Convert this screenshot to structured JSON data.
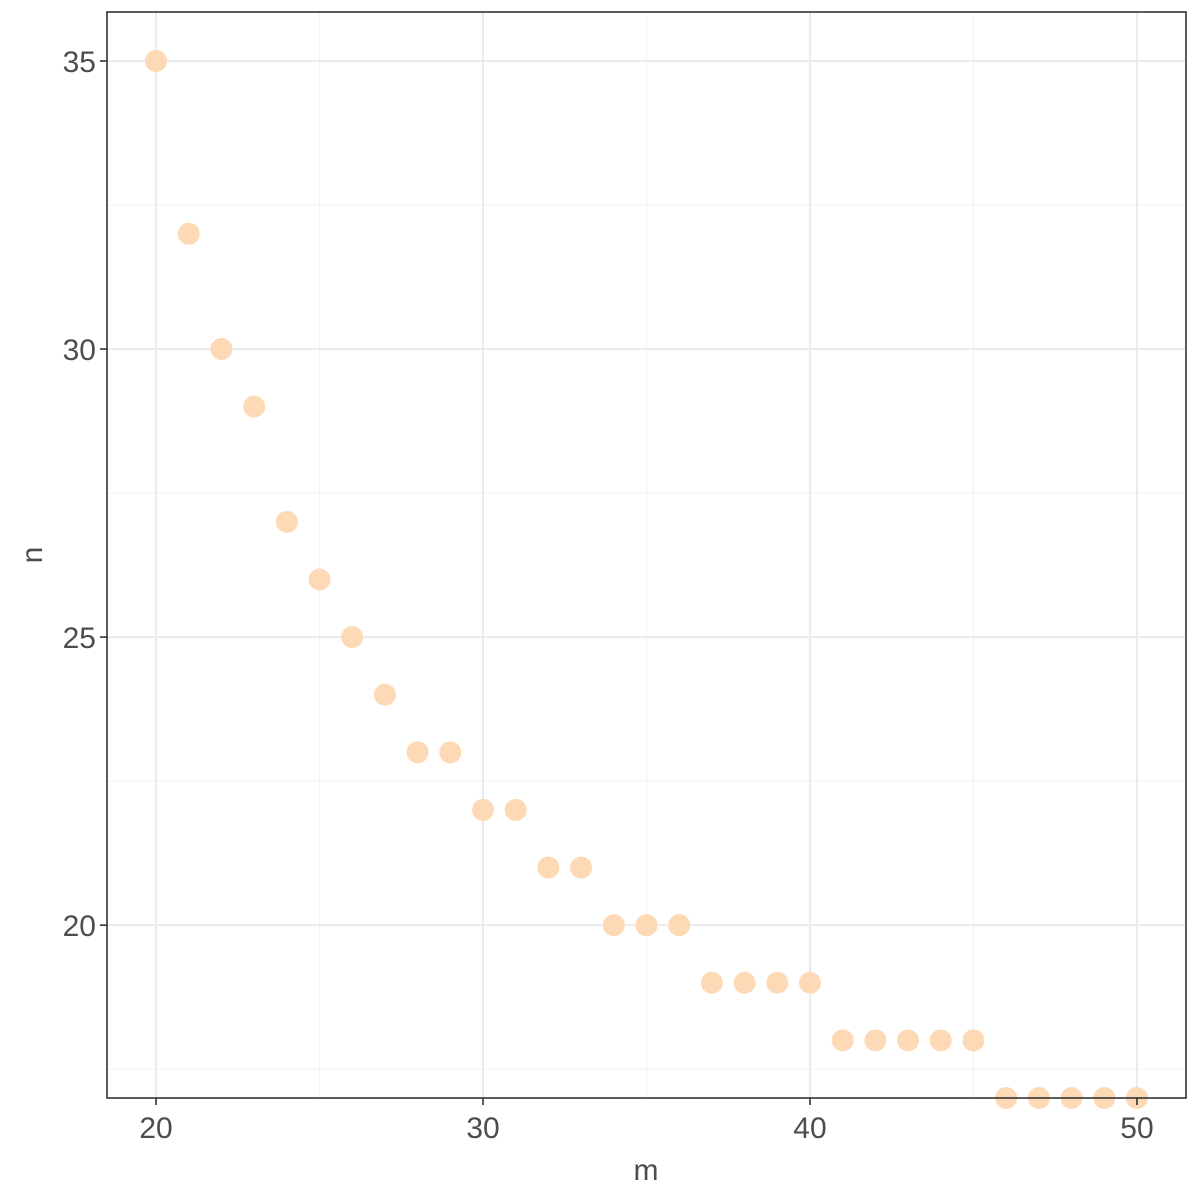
{
  "chart_data": {
    "type": "scatter",
    "title": "",
    "xlabel": "m",
    "ylabel": "n",
    "xlim": [
      18.5,
      51.5
    ],
    "ylim": [
      17.0,
      35.85
    ],
    "x_ticks": [
      20,
      30,
      40,
      50
    ],
    "y_ticks": [
      20,
      25,
      30,
      35
    ],
    "x_tick_labels": [
      "20",
      "30",
      "40",
      "50"
    ],
    "y_tick_labels": [
      "20",
      "25",
      "30",
      "35"
    ],
    "grid": true,
    "legend": "none",
    "point_color": "#FDD9B5",
    "series": [
      {
        "x": [
          20,
          21,
          22,
          23,
          24,
          25,
          26,
          27,
          28,
          29,
          30,
          31,
          32,
          33,
          34,
          35,
          36,
          37,
          38,
          39,
          40,
          41,
          42,
          43,
          44,
          45,
          46,
          47,
          48,
          49,
          50
        ],
        "y": [
          35,
          32,
          30,
          29,
          27,
          26,
          25,
          24,
          23,
          23,
          22,
          22,
          21,
          21,
          20,
          20,
          20,
          19,
          19,
          19,
          19,
          18,
          18,
          18,
          18,
          18,
          17,
          17,
          17,
          17,
          17
        ]
      }
    ]
  }
}
